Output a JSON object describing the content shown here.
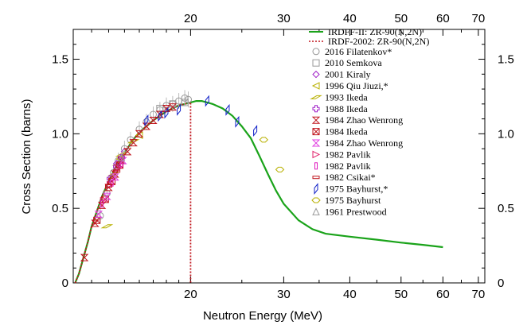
{
  "chart_data": {
    "type": "scatter",
    "xlabel": "Neutron Energy (MeV)",
    "ylabel": "Cross Section (barns)",
    "x_scale": "log",
    "xlim": [
      12,
      72
    ],
    "ylim": [
      0,
      1.7
    ],
    "x_ticks": [
      20,
      30,
      40,
      50,
      60,
      70
    ],
    "x_tick_labels": [
      "20",
      "30",
      "40",
      "50",
      "60",
      "70"
    ],
    "y_ticks": [
      0,
      0.5,
      1.0,
      1.5
    ],
    "y_tick_labels": [
      "0",
      "0.5",
      "1.0",
      "1.5"
    ],
    "legend_position": "top-right",
    "lines": [
      {
        "name": "IRDFF-II: ZR-90(N,2N)",
        "color": "#1aa31a",
        "style": "solid",
        "x": [
          12.1,
          12.3,
          12.5,
          12.8,
          13.0,
          13.3,
          13.6,
          14.0,
          14.4,
          15.0,
          15.5,
          16.0,
          17.0,
          18.0,
          19.0,
          20.0,
          20.5,
          21.0,
          22.0,
          23.0,
          24.0,
          25.0,
          26.0,
          27.0,
          28.0,
          29.0,
          30.0,
          32.0,
          34.0,
          36.0,
          40.0,
          45.0,
          50.0,
          55.0,
          60.0
        ],
        "y": [
          0.0,
          0.06,
          0.15,
          0.28,
          0.38,
          0.48,
          0.58,
          0.68,
          0.77,
          0.87,
          0.95,
          1.01,
          1.09,
          1.15,
          1.19,
          1.21,
          1.22,
          1.22,
          1.2,
          1.17,
          1.12,
          1.05,
          0.97,
          0.85,
          0.73,
          0.62,
          0.53,
          0.42,
          0.36,
          0.33,
          0.31,
          0.29,
          0.27,
          0.255,
          0.24
        ]
      },
      {
        "name": "IRDF-2002: ZR-90(N,2N)",
        "color": "#c0141c",
        "style": "dotted",
        "x": [
          12.1,
          12.3,
          12.5,
          12.8,
          13.0,
          13.3,
          13.6,
          14.0,
          14.4,
          15.0,
          15.5,
          16.0,
          17.0,
          18.0,
          19.0,
          20.0,
          20.0
        ],
        "y": [
          0.0,
          0.06,
          0.15,
          0.28,
          0.38,
          0.48,
          0.58,
          0.68,
          0.77,
          0.87,
          0.95,
          1.01,
          1.09,
          1.15,
          1.19,
          1.21,
          0.0
        ]
      }
    ],
    "series": [
      {
        "name": "2016 Filatenkov*",
        "marker": "circle",
        "color": "#999999",
        "x": [
          13.5,
          13.9,
          14.3,
          14.6,
          15.0,
          15.4,
          16.0,
          16.5,
          17.0,
          17.5,
          18.0,
          18.5,
          19.0,
          19.5,
          19.8
        ],
        "y": [
          0.45,
          0.6,
          0.74,
          0.82,
          0.9,
          0.96,
          1.03,
          1.08,
          1.13,
          1.16,
          1.19,
          1.2,
          1.22,
          1.24,
          1.23
        ]
      },
      {
        "name": "2010 Semkova",
        "marker": "square",
        "color": "#999999",
        "x": [
          17.5,
          18.5,
          19.5
        ],
        "y": [
          1.17,
          1.2,
          1.21
        ]
      },
      {
        "name": "2001 Kiraly",
        "marker": "diamond",
        "color": "#a020c8",
        "x": [
          14.5,
          15.0
        ],
        "y": [
          0.8,
          0.88
        ]
      },
      {
        "name": "1996 Qiu Jiuzi,*",
        "marker": "tri_left",
        "color": "#b8b000",
        "x": [
          14.7,
          16.0
        ],
        "y": [
          0.83,
          0.99
        ]
      },
      {
        "name": "1993 Ikeda",
        "marker": "parallelogram",
        "color": "#b8b000",
        "x": [
          13.9,
          14.3,
          14.6,
          14.8,
          15.6
        ],
        "y": [
          0.38,
          0.73,
          0.8,
          0.86,
          0.95
        ]
      },
      {
        "name": "1988 Ikeda",
        "marker": "plus",
        "color": "#a020c8",
        "x": [
          14.1,
          14.5,
          14.8
        ],
        "y": [
          0.7,
          0.78,
          0.84
        ]
      },
      {
        "name": "1984 Zhao Wenrong",
        "marker": "bowtie",
        "color": "#c0141c",
        "x": [
          12.6,
          13.2,
          13.6,
          14.0,
          14.4,
          14.8,
          15.2,
          15.6,
          16.0,
          16.5,
          17.0,
          17.5,
          18.0,
          18.5
        ],
        "y": [
          0.17,
          0.4,
          0.52,
          0.64,
          0.73,
          0.82,
          0.88,
          0.94,
          1.0,
          1.05,
          1.09,
          1.13,
          1.17,
          1.18
        ]
      },
      {
        "name": "1984 Ikeda",
        "marker": "x_box",
        "color": "#c0141c",
        "x": [
          13.3,
          13.8,
          14.2,
          14.7
        ],
        "y": [
          0.42,
          0.56,
          0.68,
          0.79
        ]
      },
      {
        "name": "1984 Zhao Wenrong",
        "marker": "bowtie",
        "color": "#e040e0",
        "x": [
          13.4,
          13.9,
          14.4,
          14.9
        ],
        "y": [
          0.46,
          0.58,
          0.71,
          0.82
        ]
      },
      {
        "name": "1982 Pavlik",
        "marker": "tri_right",
        "color": "#e0206a",
        "x": [
          13.7,
          14.1,
          14.6
        ],
        "y": [
          0.55,
          0.66,
          0.77
        ]
      },
      {
        "name": "1982 Pavlik",
        "marker": "rect_v",
        "color": "#e020c0",
        "x": [
          13.6,
          14.2,
          14.8
        ],
        "y": [
          0.53,
          0.67,
          0.8
        ]
      },
      {
        "name": "1982 Csikai*",
        "marker": "rect_h",
        "color": "#c0141c",
        "x": [
          14.0,
          14.5
        ],
        "y": [
          0.65,
          0.75
        ]
      },
      {
        "name": "1975 Bayhurst,*",
        "marker": "parallelogram_v",
        "color": "#1020c8",
        "x": [
          16.5,
          17.5,
          18.0,
          19.0,
          21.5,
          23.5,
          24.5,
          26.5
        ],
        "y": [
          1.09,
          1.12,
          1.14,
          1.16,
          1.22,
          1.16,
          1.08,
          1.02
        ]
      },
      {
        "name": "1975 Bayhurst",
        "marker": "hexagon",
        "color": "#b8b000",
        "x": [
          27.5,
          29.5
        ],
        "y": [
          0.96,
          0.76
        ]
      },
      {
        "name": "1961 Prestwood",
        "marker": "triangle",
        "color": "#999999",
        "x": [
          14.8
        ],
        "y": [
          0.84
        ]
      }
    ]
  }
}
